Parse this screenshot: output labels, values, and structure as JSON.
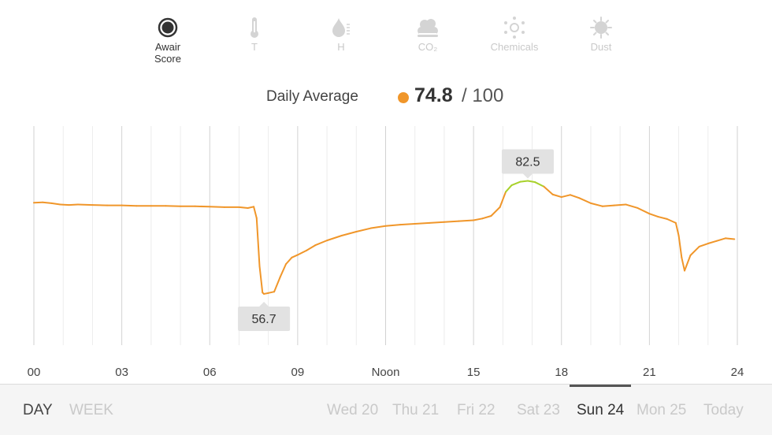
{
  "metrics": [
    {
      "label": "Awair\nScore",
      "icon": "awair-score-icon",
      "active": true
    },
    {
      "label": "T",
      "icon": "thermometer-icon",
      "active": false
    },
    {
      "label": "H",
      "icon": "humidity-icon",
      "active": false
    },
    {
      "label": "CO₂",
      "icon": "co2-cloud-icon",
      "active": false
    },
    {
      "label": "Chemicals",
      "icon": "chemicals-icon",
      "active": false
    },
    {
      "label": "Dust",
      "icon": "dust-icon",
      "active": false
    }
  ],
  "daily_average": {
    "label": "Daily Average",
    "value": "74.8",
    "max": "/ 100",
    "dot_color": "#f0962a"
  },
  "chart_data": {
    "type": "line",
    "x_ticks": [
      "00",
      "03",
      "06",
      "09",
      "Noon",
      "15",
      "18",
      "21",
      "24"
    ],
    "x_range": [
      0,
      24
    ],
    "y_range": [
      45,
      95
    ],
    "grid": true,
    "colors": {
      "normal": "#f0962a",
      "good": "#a8d12b"
    },
    "good_threshold": 80,
    "series": [
      {
        "x": [
          0,
          0.3,
          0.6,
          0.9,
          1.2,
          1.5,
          2,
          2.5,
          3,
          3.5,
          4,
          4.5,
          5,
          5.5,
          6,
          6.5,
          7,
          7.3,
          7.5,
          7.6,
          7.7,
          7.8,
          7.85,
          8.0,
          8.2,
          8.4,
          8.6,
          8.8,
          9.0,
          9.3,
          9.6,
          10.0,
          10.5,
          11.0,
          11.5,
          12.0,
          12.5,
          13.0,
          13.5,
          14.0,
          14.5,
          15.0,
          15.3,
          15.6,
          15.9,
          16.1,
          16.3,
          16.6,
          16.85,
          17.1,
          17.4,
          17.7,
          18.0,
          18.3,
          18.6,
          19.0,
          19.4,
          19.8,
          20.2,
          20.6,
          21.0,
          21.3,
          21.6,
          21.9,
          22.0,
          22.1,
          22.2,
          22.4,
          22.7,
          23.0,
          23.3,
          23.6,
          23.9
        ],
        "y": [
          77.5,
          77.6,
          77.4,
          77.1,
          77.0,
          77.1,
          77.0,
          76.9,
          76.9,
          76.8,
          76.8,
          76.8,
          76.7,
          76.7,
          76.6,
          76.5,
          76.5,
          76.3,
          76.6,
          74.0,
          63.0,
          57.0,
          56.7,
          56.9,
          57.2,
          60.5,
          63.5,
          65.0,
          65.6,
          66.6,
          67.8,
          68.9,
          70.0,
          70.9,
          71.7,
          72.2,
          72.5,
          72.7,
          72.9,
          73.1,
          73.3,
          73.5,
          73.9,
          74.5,
          76.5,
          80.0,
          81.5,
          82.3,
          82.5,
          82.2,
          81.2,
          79.4,
          78.8,
          79.3,
          78.6,
          77.4,
          76.7,
          76.9,
          77.1,
          76.3,
          75.0,
          74.3,
          73.8,
          72.9,
          70.0,
          65.0,
          62.0,
          65.5,
          67.5,
          68.2,
          68.8,
          69.4,
          69.2
        ]
      }
    ],
    "annotations": [
      {
        "x": 16.85,
        "y": 82.5,
        "label": "82.5",
        "position": "above"
      },
      {
        "x": 7.85,
        "y": 56.7,
        "label": "56.7",
        "position": "below"
      }
    ]
  },
  "range_tabs": [
    {
      "label": "DAY",
      "active": true
    },
    {
      "label": "WEEK",
      "active": false
    }
  ],
  "days": [
    {
      "label": "Wed 20",
      "active": false
    },
    {
      "label": "Thu 21",
      "active": false
    },
    {
      "label": "Fri 22",
      "active": false
    },
    {
      "label": "Sat 23",
      "active": false
    },
    {
      "label": "Sun 24",
      "active": true
    },
    {
      "label": "Mon 25",
      "active": false
    },
    {
      "label": "Today",
      "active": false
    }
  ]
}
